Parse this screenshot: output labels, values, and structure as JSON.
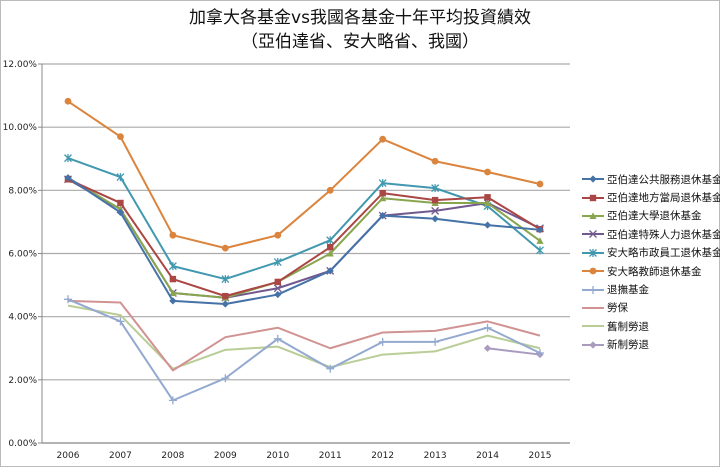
{
  "chart_data": {
    "type": "line",
    "title": "加拿大各基金vs我國各基金十年平均投資績效",
    "subtitle": "（亞伯達省、安大略省、我國）",
    "xlabel": "",
    "ylabel": "",
    "categories": [
      "2006",
      "2007",
      "2008",
      "2009",
      "2010",
      "2011",
      "2012",
      "2013",
      "2014",
      "2015"
    ],
    "ylim": [
      0,
      12
    ],
    "yticks": [
      "0.00%",
      "2.00%",
      "4.00%",
      "6.00%",
      "8.00%",
      "10.00%",
      "12.00%"
    ],
    "grid": true,
    "legend_position": "right",
    "series": [
      {
        "name": "亞伯達公共服務退休基金",
        "color": "#4572a7",
        "marker": "diamond",
        "values": [
          8.4,
          7.3,
          4.5,
          4.4,
          4.7,
          5.45,
          7.2,
          7.1,
          6.9,
          6.75
        ]
      },
      {
        "name": "亞伯達地方當局退休基金",
        "color": "#aa4643",
        "marker": "square",
        "values": [
          8.35,
          7.6,
          5.19,
          4.65,
          5.1,
          6.2,
          7.91,
          7.69,
          7.78,
          6.77
        ]
      },
      {
        "name": "亞伯達大學退休基金",
        "color": "#89a54e",
        "marker": "triangle",
        "values": [
          8.4,
          7.4,
          4.75,
          4.6,
          5.1,
          6.0,
          7.75,
          7.6,
          7.6,
          6.4
        ]
      },
      {
        "name": "亞伯達特殊人力退休基金",
        "color": "#71588f",
        "marker": "x",
        "values": [
          8.35,
          7.4,
          4.75,
          4.6,
          4.9,
          5.45,
          7.2,
          7.35,
          7.6,
          6.8
        ]
      },
      {
        "name": "安大略市政員工退休基金",
        "color": "#4198af",
        "marker": "star",
        "values": [
          9.02,
          8.42,
          5.6,
          5.19,
          5.73,
          6.42,
          8.23,
          8.07,
          7.5,
          6.1
        ]
      },
      {
        "name": "安大略教師退休基金",
        "color": "#db843d",
        "marker": "circle",
        "values": [
          10.82,
          9.7,
          6.58,
          6.17,
          6.58,
          8.0,
          9.62,
          8.92,
          8.58,
          8.2
        ]
      },
      {
        "name": "退撫基金",
        "color": "#93a9cf",
        "marker": "plus",
        "values": [
          4.55,
          3.85,
          1.35,
          2.05,
          3.3,
          2.35,
          3.2,
          3.2,
          3.65,
          2.85
        ]
      },
      {
        "name": "勞保",
        "color": "#d19392",
        "marker": "none",
        "values": [
          4.5,
          4.45,
          2.3,
          3.35,
          3.65,
          3.0,
          3.5,
          3.55,
          3.85,
          3.4
        ]
      },
      {
        "name": "舊制勞退",
        "color": "#b9cd96",
        "marker": "none",
        "values": [
          4.35,
          4.05,
          2.35,
          2.95,
          3.05,
          2.4,
          2.8,
          2.9,
          3.4,
          3.0
        ]
      },
      {
        "name": "新制勞退",
        "color": "#a99bbd",
        "marker": "diamond",
        "values": [
          null,
          null,
          null,
          null,
          null,
          null,
          null,
          null,
          3.0,
          2.8
        ]
      }
    ]
  }
}
